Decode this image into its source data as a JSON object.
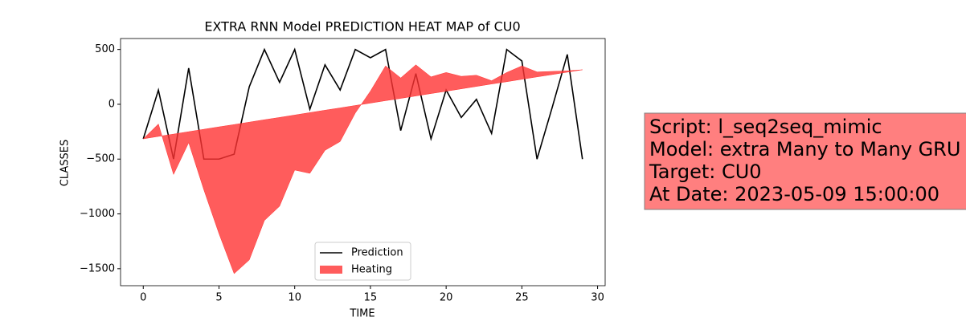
{
  "chart_data": {
    "type": "line_fill",
    "title": "EXTRA RNN Model PREDICTION HEAT MAP of CU0",
    "xlabel": "TIME",
    "ylabel": "CLASSES",
    "x": [
      0,
      1,
      2,
      3,
      4,
      5,
      6,
      7,
      8,
      9,
      10,
      11,
      12,
      13,
      14,
      15,
      16,
      17,
      18,
      19,
      20,
      21,
      22,
      23,
      24,
      25,
      26,
      27,
      28,
      29
    ],
    "series": [
      {
        "name": "Prediction",
        "color": "#000000",
        "values": [
          -315,
          130,
          -500,
          330,
          -500,
          -500,
          -455,
          160,
          500,
          200,
          500,
          -45,
          360,
          130,
          500,
          425,
          500,
          -240,
          280,
          -315,
          130,
          -120,
          45,
          -265,
          500,
          395,
          -500,
          -30,
          455,
          -500
        ]
      },
      {
        "name": "Heating",
        "color": "#ff3333",
        "values": [
          -315,
          -180,
          -640,
          -350,
          -780,
          -1180,
          -1545,
          -1420,
          -1060,
          -930,
          -600,
          -630,
          -420,
          -340,
          -80,
          120,
          350,
          240,
          360,
          250,
          290,
          255,
          265,
          215,
          290,
          350,
          295,
          300,
          305,
          315
        ],
        "baseline": [
          -315,
          -293,
          -272,
          -250,
          -228,
          -206,
          -185,
          -163,
          -141,
          -120,
          -98,
          -76,
          -54,
          -33,
          -11,
          11,
          33,
          54,
          76,
          98,
          119,
          141,
          163,
          185,
          206,
          228,
          250,
          271,
          293,
          315
        ]
      }
    ],
    "xlim": [
      -1.5,
      30.5
    ],
    "ylim": [
      -1655,
      600
    ],
    "xticks": [
      0,
      5,
      10,
      15,
      20,
      25,
      30
    ],
    "yticks": [
      500,
      0,
      {
        "value": -500,
        "label": "−500"
      },
      {
        "value": -1000,
        "label": "−1000"
      },
      {
        "value": -1500,
        "label": "−1500"
      }
    ],
    "legend": "lower center",
    "annotations": [
      "Script: l_seq2seq_mimic",
      "Model: extra Many to Many GRU",
      "Target: CU0",
      "At Date: 2023-05-09 15:00:00"
    ],
    "annotation_color": "#ff7f7f"
  }
}
